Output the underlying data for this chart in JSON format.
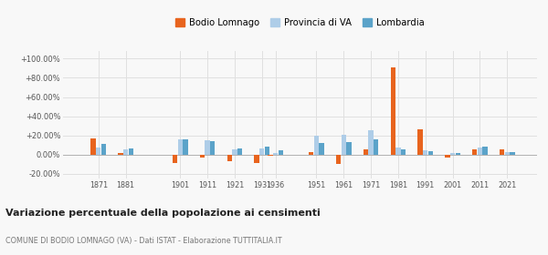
{
  "years": [
    1871,
    1881,
    1901,
    1911,
    1921,
    1931,
    1936,
    1951,
    1961,
    1971,
    1981,
    1991,
    2001,
    2011,
    2021
  ],
  "bodio": [
    17.0,
    1.5,
    -9.0,
    -3.0,
    -7.0,
    -8.5,
    -1.5,
    2.5,
    -10.0,
    5.0,
    91.0,
    26.0,
    -3.0,
    5.5,
    5.0
  ],
  "provincia": [
    7.0,
    5.5,
    16.0,
    15.0,
    5.5,
    6.5,
    1.5,
    19.5,
    21.0,
    25.0,
    7.5,
    4.0,
    1.5,
    7.5,
    2.5
  ],
  "lombardia": [
    11.0,
    6.5,
    16.0,
    14.0,
    6.0,
    8.0,
    4.0,
    12.5,
    13.0,
    16.0,
    5.0,
    3.5,
    1.5,
    8.0,
    3.0
  ],
  "color_bodio": "#E8641E",
  "color_provincia": "#AECDE8",
  "color_lombardia": "#5BA3C9",
  "legend_labels": [
    "Bodio Lomnago",
    "Provincia di VA",
    "Lombardia"
  ],
  "title": "Variazione percentuale della popolazione ai censimenti",
  "subtitle": "COMUNE DI BODIO LOMNAGO (VA) - Dati ISTAT - Elaborazione TUTTITALIA.IT",
  "ylim": [
    -25,
    108
  ],
  "yticks": [
    -20,
    0,
    20,
    40,
    60,
    80,
    100
  ],
  "ytick_labels": [
    "-20.00%",
    "0.00%",
    "+20.00%",
    "+40.00%",
    "+60.00%",
    "+80.00%",
    "+100.00%"
  ],
  "background_color": "#f8f8f8",
  "grid_color": "#e0e0e0",
  "xlim_left": 1858,
  "xlim_right": 2032
}
